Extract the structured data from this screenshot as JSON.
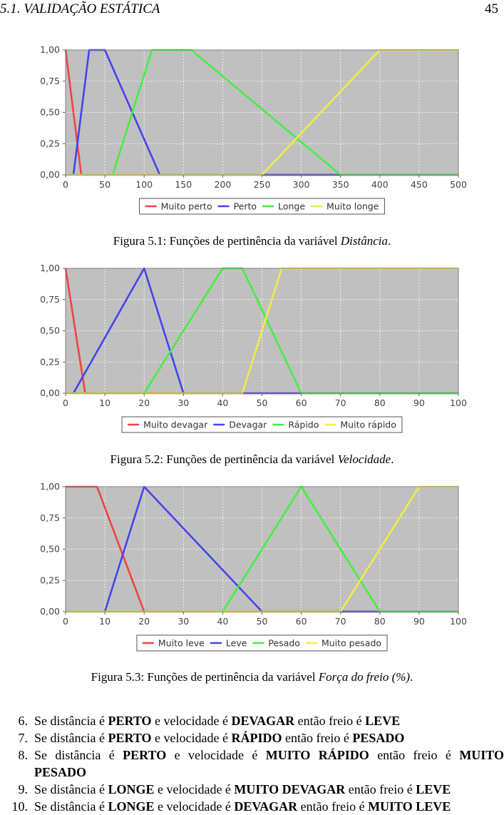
{
  "header": {
    "section": "5.1.  VALIDAÇÃO ESTÁTICA",
    "page_number": "45"
  },
  "chart_data": [
    {
      "type": "line",
      "caption_prefix": "Figura 5.1: Funções de pertinência da variável ",
      "caption_var": "Distância",
      "caption_suffix": ".",
      "xlim": [
        0,
        500
      ],
      "ylim": [
        0,
        1
      ],
      "xticks": [
        0,
        50,
        100,
        150,
        200,
        250,
        300,
        350,
        400,
        450,
        500
      ],
      "yticks": [
        0,
        0.25,
        0.5,
        0.75,
        1
      ],
      "yticklabels": [
        "0,00",
        "0,25",
        "0,50",
        "0,75",
        "1,00"
      ],
      "grid": true,
      "legend_position": "bottom-center",
      "series": [
        {
          "name": "Muito perto",
          "color": "#ee4444",
          "x": [
            0,
            20,
            500
          ],
          "y": [
            1,
            0,
            0
          ]
        },
        {
          "name": "Perto",
          "color": "#4444ee",
          "x": [
            0,
            10,
            30,
            50,
            120,
            500
          ],
          "y": [
            0,
            0,
            1,
            1,
            0,
            0
          ]
        },
        {
          "name": "Longe",
          "color": "#44ee44",
          "x": [
            0,
            60,
            110,
            160,
            350,
            500
          ],
          "y": [
            0,
            0,
            1,
            1,
            0,
            0
          ]
        },
        {
          "name": "Muito longe",
          "color": "#eeee44",
          "x": [
            0,
            250,
            400,
            500
          ],
          "y": [
            0,
            0,
            1,
            1
          ]
        }
      ]
    },
    {
      "type": "line",
      "caption_prefix": "Figura 5.2: Funções de pertinência da variável ",
      "caption_var": "Velocidade",
      "caption_suffix": ".",
      "xlim": [
        0,
        100
      ],
      "ylim": [
        0,
        1
      ],
      "xticks": [
        0,
        10,
        20,
        30,
        40,
        50,
        60,
        70,
        80,
        90,
        100
      ],
      "yticks": [
        0,
        0.25,
        0.5,
        0.75,
        1
      ],
      "yticklabels": [
        "0,00",
        "0,25",
        "0,50",
        "0,75",
        "1,00"
      ],
      "grid": true,
      "legend_position": "bottom-center",
      "series": [
        {
          "name": "Muito devagar",
          "color": "#ee4444",
          "x": [
            0,
            5,
            100
          ],
          "y": [
            1,
            0,
            0
          ]
        },
        {
          "name": "Devagar",
          "color": "#4444ee",
          "x": [
            0,
            2,
            20,
            30,
            100
          ],
          "y": [
            0,
            0,
            1,
            0,
            0
          ]
        },
        {
          "name": "Rápido",
          "color": "#44ee44",
          "x": [
            0,
            20,
            40,
            45,
            60,
            100
          ],
          "y": [
            0,
            0,
            1,
            1,
            0,
            0
          ]
        },
        {
          "name": "Muito rápido",
          "color": "#eeee44",
          "x": [
            0,
            45,
            55,
            100
          ],
          "y": [
            0,
            0,
            1,
            1
          ]
        }
      ]
    },
    {
      "type": "line",
      "caption_prefix": "Figura 5.3: Funções de pertinência da variável ",
      "caption_var": "Força do freio (%)",
      "caption_suffix": ".",
      "xlim": [
        0,
        100
      ],
      "ylim": [
        0,
        1
      ],
      "xticks": [
        0,
        10,
        20,
        30,
        40,
        50,
        60,
        70,
        80,
        90,
        100
      ],
      "yticks": [
        0,
        0.25,
        0.5,
        0.75,
        1
      ],
      "yticklabels": [
        "0,00",
        "0,25",
        "0,50",
        "0,75",
        "1,00"
      ],
      "grid": true,
      "legend_position": "bottom-center",
      "series": [
        {
          "name": "Muito leve",
          "color": "#ee4444",
          "x": [
            0,
            8,
            20,
            100
          ],
          "y": [
            1,
            1,
            0,
            0
          ]
        },
        {
          "name": "Leve",
          "color": "#4444ee",
          "x": [
            0,
            10,
            20,
            50,
            100
          ],
          "y": [
            0,
            0,
            1,
            0,
            0
          ]
        },
        {
          "name": "Pesado",
          "color": "#44ee44",
          "x": [
            0,
            40,
            60,
            80,
            100
          ],
          "y": [
            0,
            0,
            1,
            0,
            0
          ]
        },
        {
          "name": "Muito pesado",
          "color": "#eeee44",
          "x": [
            0,
            70,
            90,
            100
          ],
          "y": [
            0,
            0,
            1,
            1
          ]
        }
      ]
    }
  ],
  "rules": [
    {
      "num": "6.",
      "parts": [
        "Se distância é ",
        "PERTO",
        " e velocidade é ",
        "DEVAGAR",
        " então freio é ",
        "LEVE"
      ]
    },
    {
      "num": "7.",
      "parts": [
        "Se distância é ",
        "PERTO",
        " e velocidade é ",
        "RÁPIDO",
        " então freio é ",
        "PESADO"
      ]
    },
    {
      "num": "8.",
      "parts": [
        "Se distância é ",
        "PERTO",
        " e velocidade é ",
        "MUITO RÁPIDO",
        " então freio é ",
        "MUITO"
      ],
      "cont": "PESADO"
    },
    {
      "num": "9.",
      "parts": [
        "Se distância é ",
        "LONGE",
        " e velocidade é ",
        "MUITO DEVAGAR",
        " então freio é ",
        "LEVE"
      ]
    },
    {
      "num": "10.",
      "parts": [
        "Se distância é ",
        "LONGE",
        " e velocidade é ",
        "DEVAGAR",
        " então freio é ",
        "MUITO LEVE"
      ]
    }
  ]
}
